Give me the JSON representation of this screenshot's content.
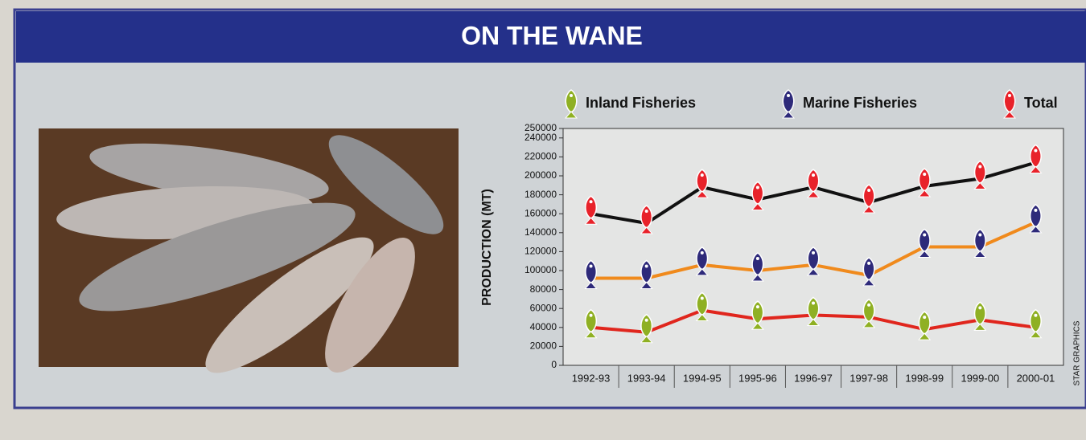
{
  "chart_data": {
    "type": "line",
    "title": "ON THE WANE",
    "y_label": "PRODUCTION (MT)",
    "credit": "STAR GRAPHICS",
    "categories": [
      "1992-93",
      "1993-94",
      "1994-95",
      "1995-96",
      "1996-97",
      "1997-98",
      "1998-99",
      "1999-00",
      "2000-01"
    ],
    "series": [
      {
        "name": "Inland Fisheries",
        "color": "#8fb023",
        "line_color": "#e0261d",
        "values": [
          40000,
          35000,
          58000,
          49000,
          53000,
          51000,
          38000,
          48000,
          40000
        ]
      },
      {
        "name": "Marine Fisheries",
        "color": "#2e2a7a",
        "line_color": "#f08a1c",
        "values": [
          92000,
          92000,
          106000,
          100000,
          106000,
          95000,
          125000,
          125000,
          151000
        ]
      },
      {
        "name": "Total",
        "color": "#e8222a",
        "line_color": "#111111",
        "values": [
          160000,
          150000,
          188000,
          175000,
          188000,
          172000,
          189000,
          197000,
          214000
        ]
      }
    ],
    "ylim": [
      0,
      250000
    ],
    "yticks": [
      0,
      20000,
      40000,
      60000,
      80000,
      100000,
      120000,
      140000,
      160000,
      180000,
      200000,
      220000,
      240000,
      250000
    ],
    "legend": "top"
  }
}
